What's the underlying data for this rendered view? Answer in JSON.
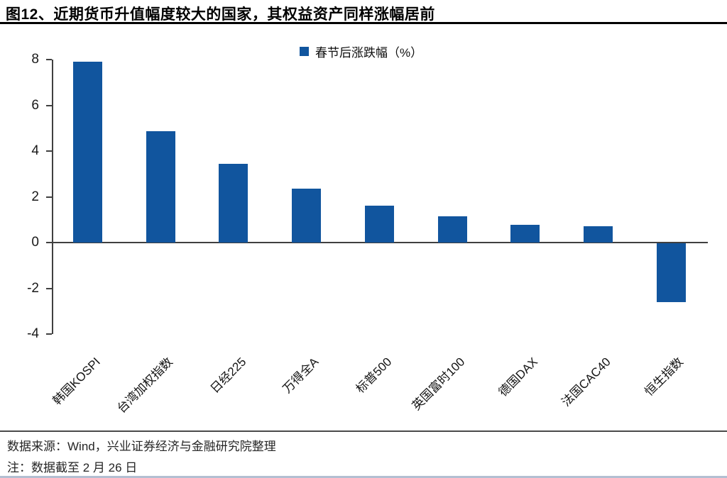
{
  "title": "图12、近期货币升值幅度较大的国家，其权益资产同样涨幅居前",
  "legend": {
    "label": "春节后涨跌幅（%）"
  },
  "footer": {
    "source": "数据来源：Wind，兴业证券经济与金融研究院整理",
    "note": "注：数据截至 2 月 26 日"
  },
  "chart_data": {
    "type": "bar",
    "title": "图12、近期货币升值幅度较大的国家，其权益资产同样涨幅居前",
    "series_name": "春节后涨跌幅（%）",
    "categories": [
      "韩国KOSPI",
      "台湾加权指数",
      "日经225",
      "万得全A",
      "标普500",
      "英国富时100",
      "德国DAX",
      "法国CAC40",
      "恒生指数"
    ],
    "values": [
      7.9,
      4.88,
      3.43,
      2.35,
      1.6,
      1.15,
      0.77,
      0.72,
      -2.57
    ],
    "xlabel": "",
    "ylabel": "",
    "ylim": [
      -4,
      8
    ],
    "ytick_step": 2,
    "grid": false,
    "legend_position": "top-center",
    "bar_color": "#11559e",
    "axis_color": "#404040"
  }
}
